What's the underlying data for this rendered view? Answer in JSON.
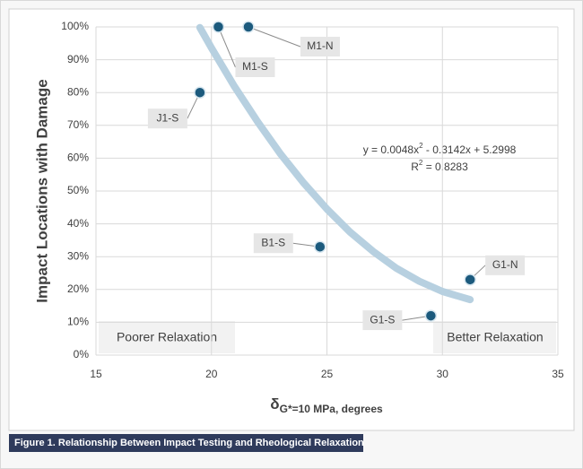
{
  "chart_data": {
    "type": "scatter",
    "x_label": [
      "δ",
      "G*=10 MPa",
      ", degrees"
    ],
    "y_label": "Impact Locations with Damage",
    "caption": "Figure 1. Relationship Between Impact Testing and Rheological Relaxation",
    "xlim": [
      15,
      35
    ],
    "xticks": [
      15,
      20,
      25,
      30,
      35
    ],
    "ylim": [
      0,
      100
    ],
    "yticks": [
      {
        "value": 0,
        "label": "0%"
      },
      {
        "value": 10,
        "label": "10%"
      },
      {
        "value": 20,
        "label": "20%"
      },
      {
        "value": 30,
        "label": "30%"
      },
      {
        "value": 40,
        "label": "40%"
      },
      {
        "value": 50,
        "label": "50%"
      },
      {
        "value": 60,
        "label": "60%"
      },
      {
        "value": 70,
        "label": "70%"
      },
      {
        "value": 80,
        "label": "80%"
      },
      {
        "value": 90,
        "label": "90%"
      },
      {
        "value": 100,
        "label": "100%"
      }
    ],
    "grid": true,
    "points": {
      "color": "#1c5a7d",
      "labels": [
        "M1-S",
        "M1-N",
        "J1-S",
        "B1-S",
        "G1-S",
        "G1-N"
      ],
      "x": [
        20.3,
        21.6,
        19.5,
        24.7,
        29.5,
        31.2
      ],
      "values": [
        100,
        100,
        80,
        33,
        12,
        23
      ]
    },
    "trendline": {
      "color": "#b7d0e0",
      "x": [
        19.5,
        20,
        21,
        22,
        23,
        24,
        25,
        26,
        27,
        28,
        29,
        30,
        31.2
      ],
      "values": [
        99.8,
        93.6,
        81.8,
        71.1,
        61.2,
        52.4,
        44.5,
        37.5,
        31.6,
        26.5,
        22.5,
        19.4,
        16.9
      ]
    },
    "equation": [
      "y = 0.0048x",
      "2",
      " - 0.3142x + 5.2998"
    ],
    "r2": [
      "R",
      "2",
      " = 0.8283"
    ],
    "annotations": [
      "Poorer Relaxation",
      "Better Relaxation"
    ]
  }
}
